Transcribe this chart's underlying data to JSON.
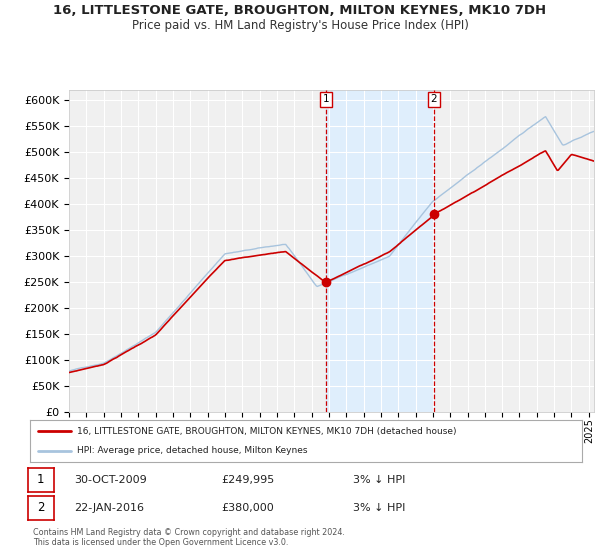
{
  "title": "16, LITTLESTONE GATE, BROUGHTON, MILTON KEYNES, MK10 7DH",
  "subtitle": "Price paid vs. HM Land Registry's House Price Index (HPI)",
  "legend_line1": "16, LITTLESTONE GATE, BROUGHTON, MILTON KEYNES, MK10 7DH (detached house)",
  "legend_line2": "HPI: Average price, detached house, Milton Keynes",
  "annotation1_label": "1",
  "annotation1_date": "30-OCT-2009",
  "annotation1_price": "£249,995",
  "annotation1_hpi": "3% ↓ HPI",
  "annotation2_label": "2",
  "annotation2_date": "22-JAN-2016",
  "annotation2_price": "£380,000",
  "annotation2_hpi": "3% ↓ HPI",
  "footnote1": "Contains HM Land Registry data © Crown copyright and database right 2024.",
  "footnote2": "This data is licensed under the Open Government Licence v3.0.",
  "sale1_x": 2009.83,
  "sale1_y": 249995,
  "sale2_x": 2016.06,
  "sale2_y": 380000,
  "vline1_x": 2009.83,
  "vline2_x": 2016.06,
  "hpi_color": "#a8c4de",
  "price_color": "#cc0000",
  "sale_dot_color": "#cc0000",
  "vline_color": "#cc0000",
  "shade_color": "#ddeeff",
  "ylim": [
    0,
    620000
  ],
  "xlim_left": 1995,
  "xlim_right": 2025.3,
  "bg_color": "#ffffff",
  "plot_bg_color": "#f0f0f0",
  "grid_color": "#ffffff",
  "title_fontsize": 9.5,
  "subtitle_fontsize": 8.5,
  "tick_fontsize": 7,
  "ytick_fontsize": 8
}
